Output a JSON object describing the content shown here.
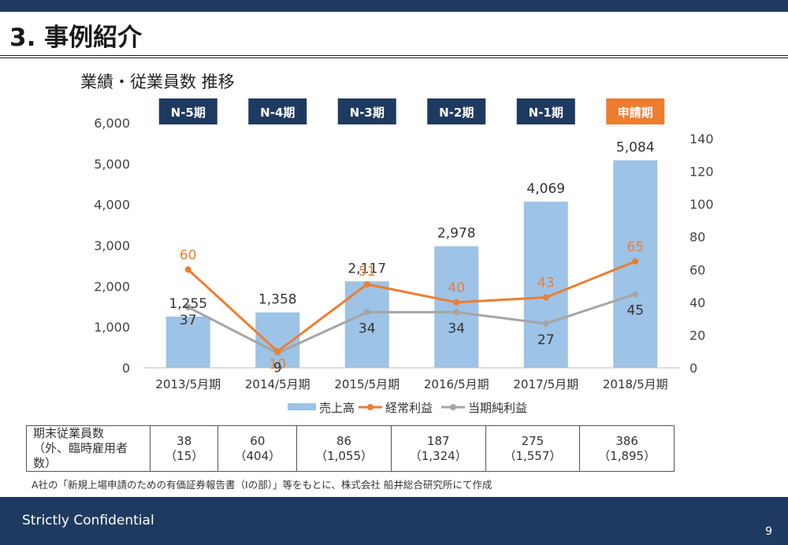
{
  "header": {
    "title": "3. 事例紹介"
  },
  "subtitle": "業績・従業員数 推移",
  "colors": {
    "bar": "#9dc3e6",
    "ordinary_profit": "#ed7d31",
    "net_profit": "#a5a5a5",
    "period_label": "#1f3a60",
    "period_label_highlight": "#ed7d31"
  },
  "chart_data": {
    "type": "bar",
    "periods": [
      "N-5期",
      "N-4期",
      "N-3期",
      "N-2期",
      "N-1期",
      "申請期"
    ],
    "categories": [
      "2013/5月期",
      "2014/5月期",
      "2015/5月期",
      "2016/5月期",
      "2017/5月期",
      "2018/5月期"
    ],
    "y_left": {
      "ylim": [
        0,
        6000
      ],
      "ticks": [
        "0",
        "1,000",
        "2,000",
        "3,000",
        "4,000",
        "5,000",
        "6,000"
      ]
    },
    "y_right": {
      "ylim": [
        0,
        140
      ],
      "ticks": [
        "0",
        "20",
        "40",
        "60",
        "80",
        "100",
        "120",
        "140"
      ]
    },
    "series": [
      {
        "name": "売上高",
        "type": "bar",
        "axis": "left",
        "values": [
          1255,
          1358,
          2117,
          2978,
          4069,
          5084
        ],
        "labels": [
          "1,255",
          "1,358",
          "2,117",
          "2,978",
          "4,069",
          "5,084"
        ]
      },
      {
        "name": "経常利益",
        "type": "line",
        "axis": "right",
        "values": [
          60,
          10,
          51,
          40,
          43,
          65
        ],
        "labels": [
          "60",
          "10",
          "51",
          "40",
          "43",
          "65"
        ]
      },
      {
        "name": "当期純利益",
        "type": "line",
        "axis": "right",
        "values": [
          37,
          9,
          34,
          34,
          27,
          45
        ],
        "labels": [
          "37",
          "9",
          "34",
          "34",
          "27",
          "45"
        ]
      }
    ],
    "grid": false,
    "legend": "bottom"
  },
  "employees": {
    "header_line1": "期末従業員数",
    "header_line2": "（外、臨時雇用者数）",
    "counts": [
      "38",
      "60",
      "86",
      "187",
      "275",
      "386"
    ],
    "temps": [
      "（15）",
      "（404）",
      "（1,055）",
      "（1,324）",
      "（1,557）",
      "（1,895）"
    ]
  },
  "note": "A社の「新規上場申請のための有価証券報告書（Ⅰの部）」等をもとに、株式会社 船井総合研究所にて作成",
  "footer": {
    "confidential": "Strictly Confidential",
    "page_number": "9"
  }
}
